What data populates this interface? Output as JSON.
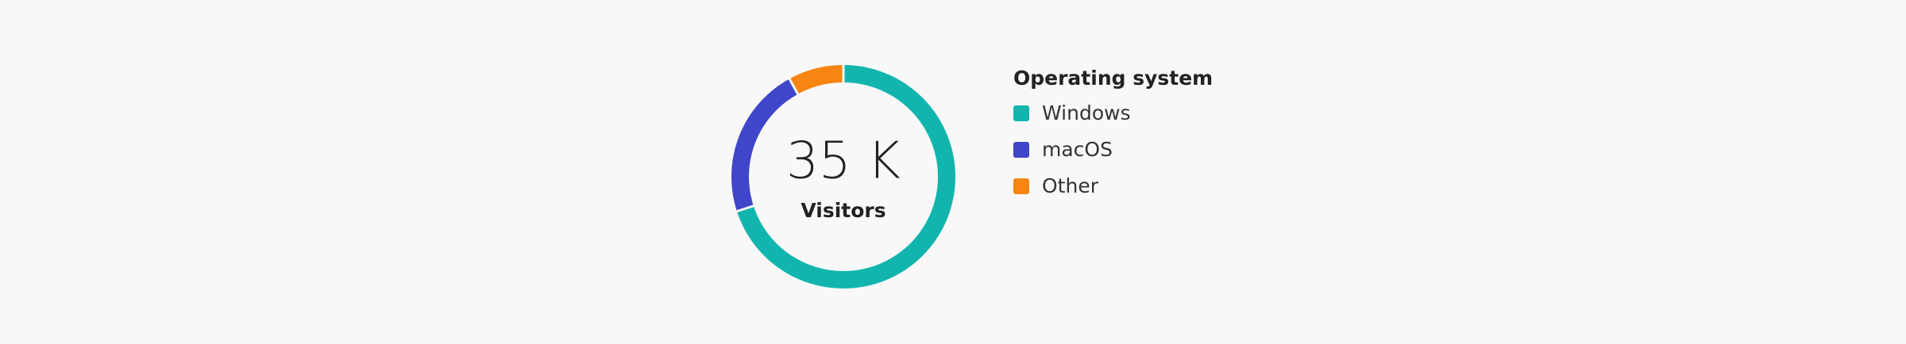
{
  "chart_data": {
    "type": "donut",
    "center_value": "35 K",
    "center_label": "Visitors",
    "legend_title": "Operating system",
    "categories": [
      "Windows",
      "macOS",
      "Other"
    ],
    "values": [
      70,
      22,
      8
    ],
    "colors": [
      "#12b5ae",
      "#4046ca",
      "#f68511"
    ],
    "legend": "right"
  }
}
